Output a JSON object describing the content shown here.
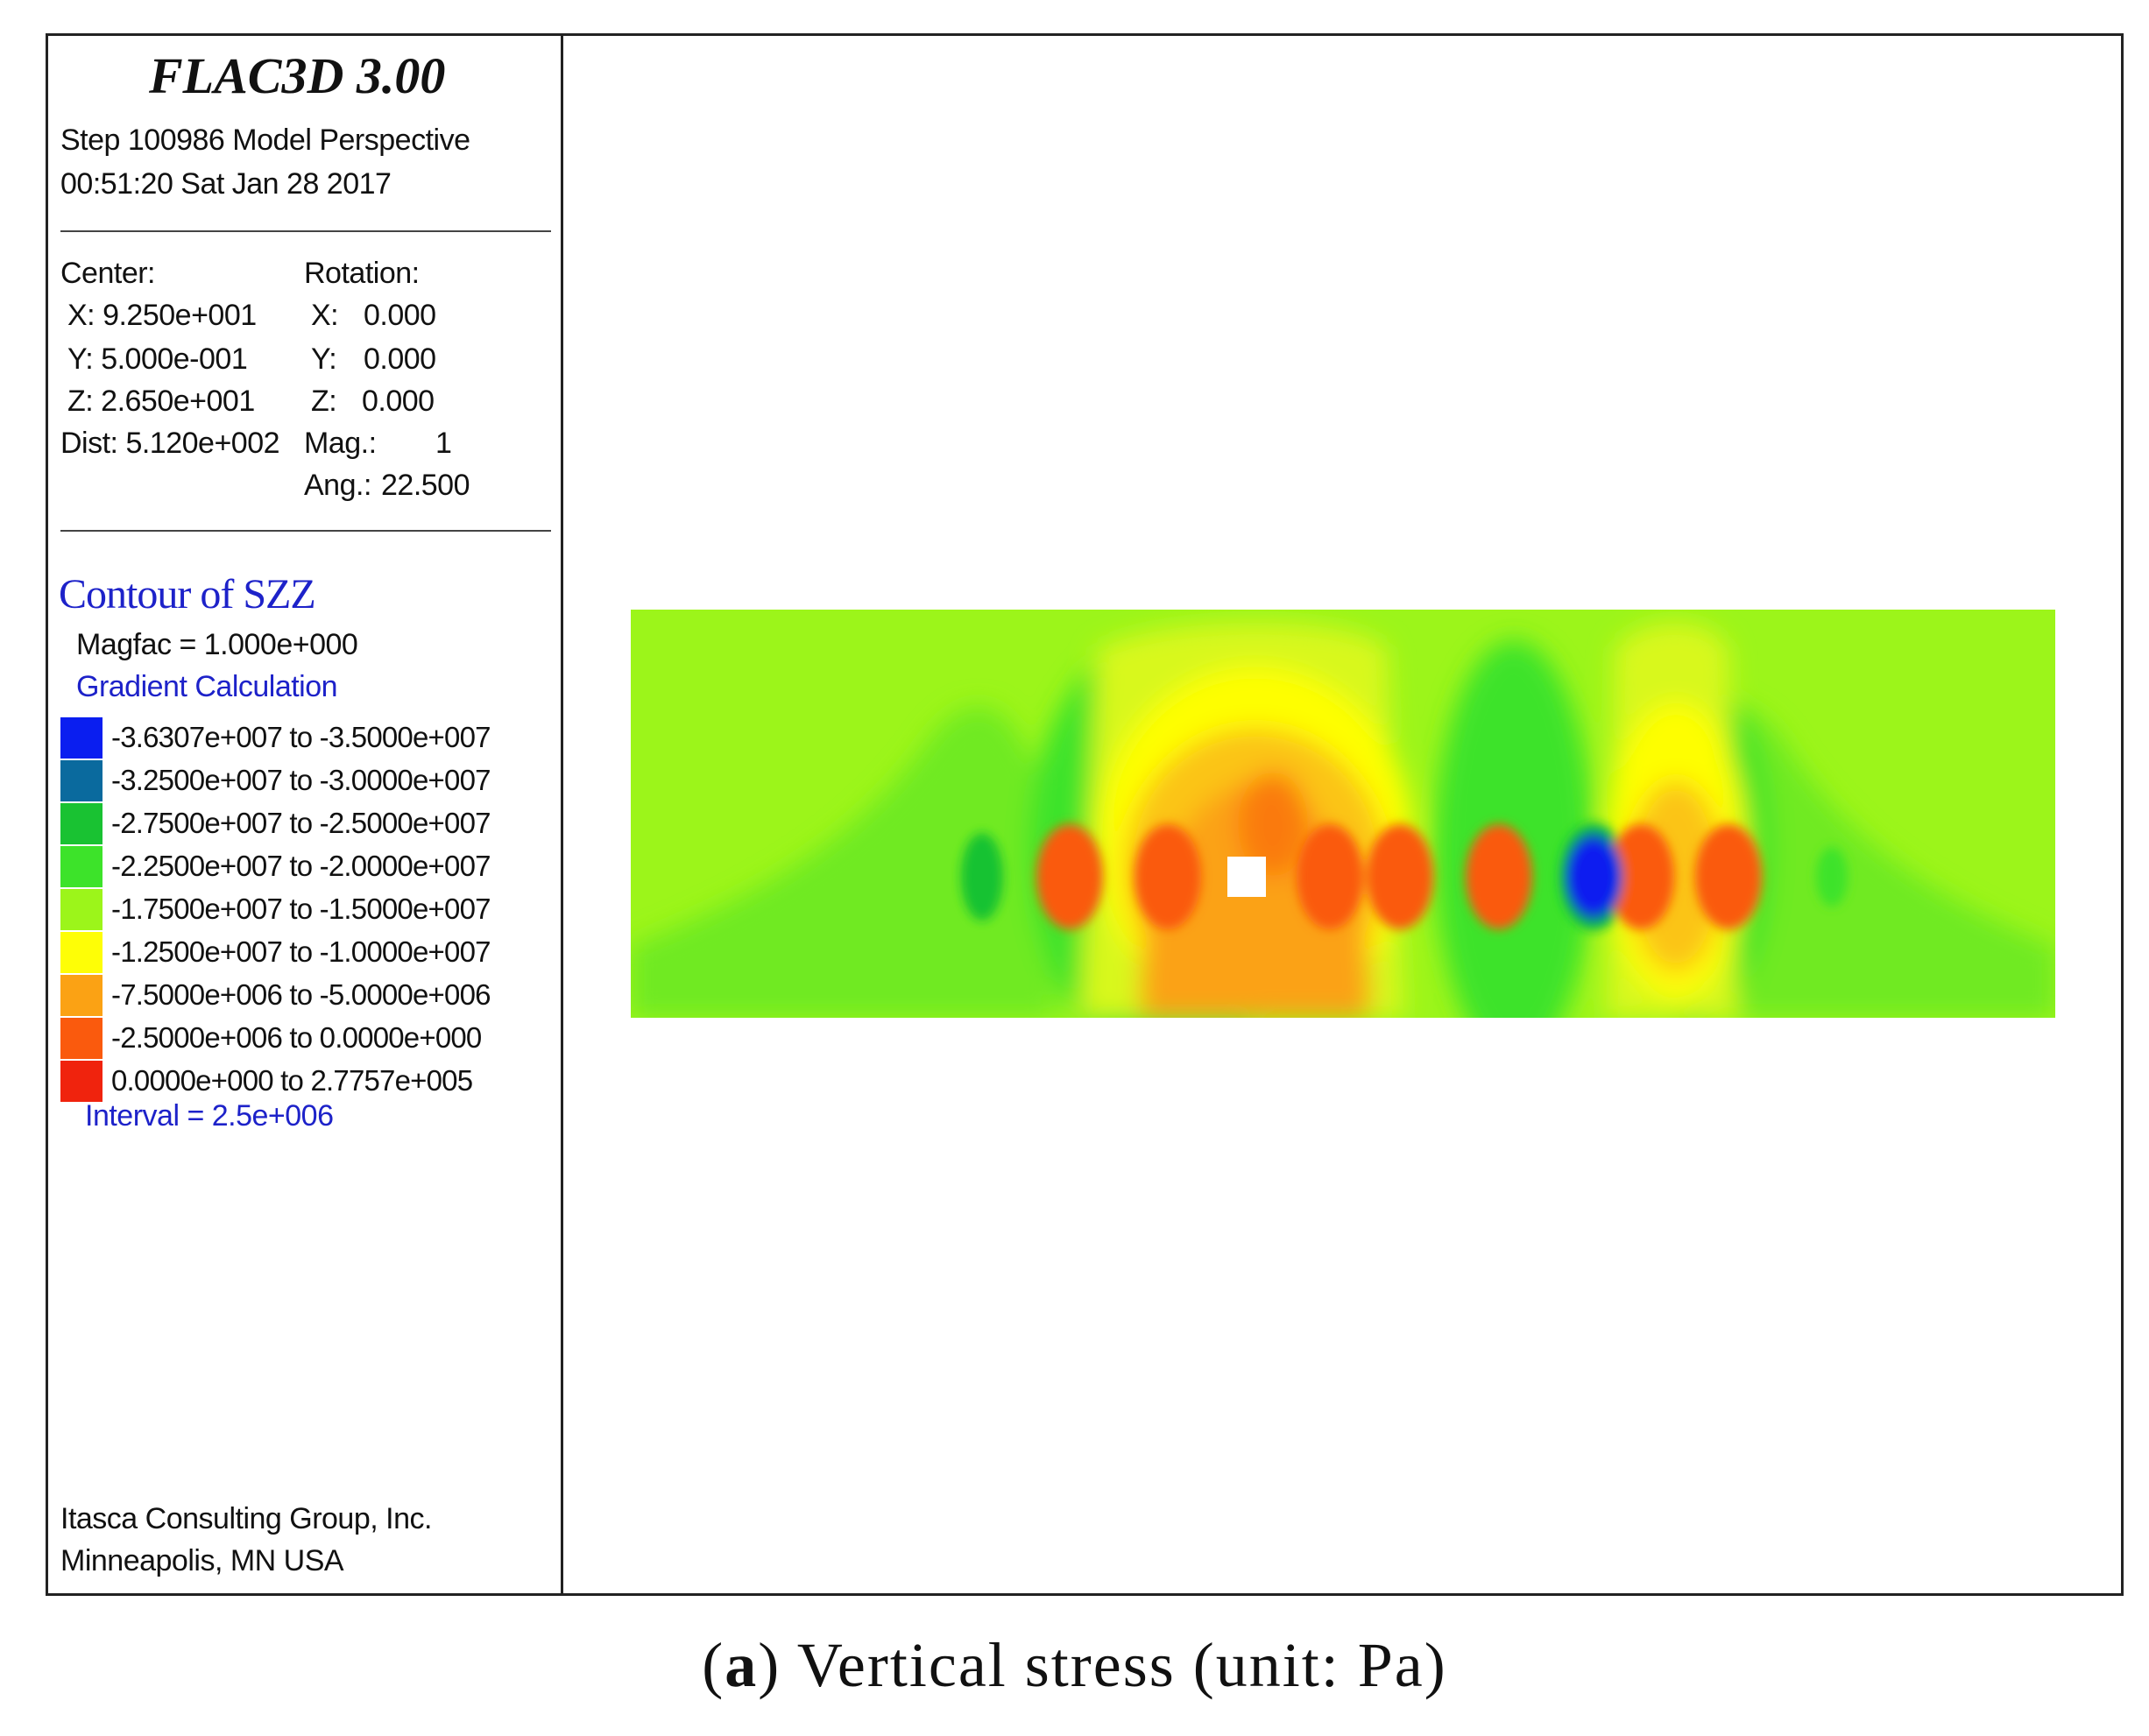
{
  "panel": {
    "title": "FLAC3D 3.00",
    "step_line": "Step 100986  Model Perspective",
    "date_line": "00:51:20 Sat Jan 28 2017",
    "center_label": "Center:",
    "center_x": "X: 9.250e+001",
    "center_y": "Y: 5.000e-001",
    "center_z": "Z: 2.650e+001",
    "dist": "Dist: 5.120e+002",
    "rotation_label": "Rotation:",
    "rot_x_label": "X:",
    "rot_x": "0.000",
    "rot_y_label": "Y:",
    "rot_y": "0.000",
    "rot_z_label": "Z:",
    "rot_z": "0.000",
    "mag_label": "Mag.:",
    "mag": "1",
    "ang_label": "Ang.:",
    "ang": "22.500",
    "contour_title": "Contour of SZZ",
    "magfac": "Magfac =  1.000e+000",
    "gradient": "Gradient Calculation",
    "interval": "Interval =  2.5e+006",
    "footer_line1": "Itasca Consulting Group, Inc.",
    "footer_line2": "Minneapolis, MN  USA"
  },
  "legend": [
    {
      "color": "#0a1ef0",
      "label": "-3.6307e+007 to -3.5000e+007"
    },
    {
      "color": "#0a6a9e",
      "label": "-3.2500e+007 to -3.0000e+007"
    },
    {
      "color": "#19c232",
      "label": "-2.7500e+007 to -2.5000e+007"
    },
    {
      "color": "#3de32a",
      "label": "-2.2500e+007 to -2.0000e+007"
    },
    {
      "color": "#9cf51a",
      "label": "-1.7500e+007 to -1.5000e+007"
    },
    {
      "color": "#fefe06",
      "label": "-1.2500e+007 to -1.0000e+007"
    },
    {
      "color": "#fba214",
      "label": "-7.5000e+006 to -5.0000e+006"
    },
    {
      "color": "#fa5a0d",
      "label": "-2.5000e+006 to  0.0000e+000"
    },
    {
      "color": "#f0230d",
      "label": " 0.0000e+000 to  2.7757e+005"
    }
  ],
  "caption": {
    "tag": "a",
    "text": "Vertical stress (unit: Pa)"
  }
}
